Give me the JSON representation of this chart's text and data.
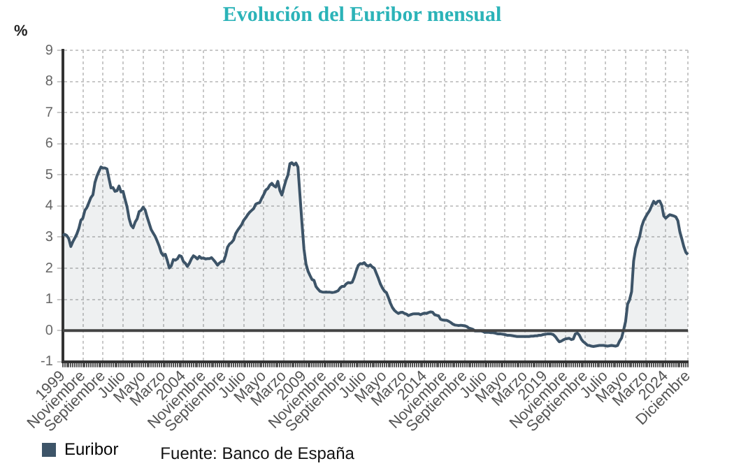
{
  "chart_data": {
    "type": "area",
    "title": "Evolución del Euribor mensual",
    "ylabel": "%",
    "categories": [
      "1999",
      null,
      null,
      null,
      null,
      null,
      null,
      null,
      null,
      null,
      "Noviembre",
      null,
      null,
      null,
      null,
      null,
      null,
      null,
      null,
      null,
      "Septiembre",
      null,
      null,
      null,
      null,
      null,
      null,
      null,
      null,
      null,
      "Julio",
      null,
      null,
      null,
      null,
      null,
      null,
      null,
      null,
      null,
      "Mayo",
      null,
      null,
      null,
      null,
      null,
      null,
      null,
      null,
      null,
      "Marzo",
      null,
      null,
      null,
      null,
      null,
      null,
      null,
      null,
      null,
      "2004",
      null,
      null,
      null,
      null,
      null,
      null,
      null,
      null,
      null,
      "Noviembre",
      null,
      null,
      null,
      null,
      null,
      null,
      null,
      null,
      null,
      "Septiembre",
      null,
      null,
      null,
      null,
      null,
      null,
      null,
      null,
      null,
      "Julio",
      null,
      null,
      null,
      null,
      null,
      null,
      null,
      null,
      null,
      "Mayo",
      null,
      null,
      null,
      null,
      null,
      null,
      null,
      null,
      null,
      "Marzo",
      null,
      null,
      null,
      null,
      null,
      null,
      null,
      null,
      null,
      "2009",
      null,
      null,
      null,
      null,
      null,
      null,
      null,
      null,
      null,
      "Noviembre",
      null,
      null,
      null,
      null,
      null,
      null,
      null,
      null,
      null,
      "Septiembre",
      null,
      null,
      null,
      null,
      null,
      null,
      null,
      null,
      null,
      "Julio",
      null,
      null,
      null,
      null,
      null,
      null,
      null,
      null,
      null,
      "Mayo",
      null,
      null,
      null,
      null,
      null,
      null,
      null,
      null,
      null,
      "Marzo",
      null,
      null,
      null,
      null,
      null,
      null,
      null,
      null,
      null,
      "2014",
      null,
      null,
      null,
      null,
      null,
      null,
      null,
      null,
      null,
      "Noviembre",
      null,
      null,
      null,
      null,
      null,
      null,
      null,
      null,
      null,
      "Septiembre",
      null,
      null,
      null,
      null,
      null,
      null,
      null,
      null,
      null,
      "Julio",
      null,
      null,
      null,
      null,
      null,
      null,
      null,
      null,
      null,
      "Mayo",
      null,
      null,
      null,
      null,
      null,
      null,
      null,
      null,
      null,
      "Marzo",
      null,
      null,
      null,
      null,
      null,
      null,
      null,
      null,
      null,
      "2019",
      null,
      null,
      null,
      null,
      null,
      null,
      null,
      null,
      null,
      "Noviembre",
      null,
      null,
      null,
      null,
      null,
      null,
      null,
      null,
      null,
      "Septiembre",
      null,
      null,
      null,
      null,
      null,
      null,
      null,
      null,
      null,
      "Julio",
      null,
      null,
      null,
      null,
      null,
      null,
      null,
      null,
      null,
      "Mayo",
      null,
      null,
      null,
      null,
      null,
      null,
      null,
      null,
      null,
      "Marzo",
      null,
      null,
      null,
      null,
      null,
      null,
      null,
      null,
      null,
      "2024",
      null,
      null,
      null,
      null,
      null,
      null,
      null,
      null,
      null,
      null,
      "Diciembre"
    ],
    "series": [
      {
        "name": "Euribor",
        "color": "#3d5468",
        "values": [
          3.05,
          3.09,
          3.05,
          2.95,
          2.7,
          2.85,
          2.97,
          3.1,
          3.28,
          3.54,
          3.61,
          3.86,
          3.95,
          4.11,
          4.27,
          4.36,
          4.75,
          4.96,
          5.11,
          5.25,
          5.22,
          5.22,
          5.19,
          4.88,
          4.58,
          4.59,
          4.47,
          4.49,
          4.64,
          4.45,
          4.47,
          4.21,
          3.97,
          3.6,
          3.38,
          3.3,
          3.48,
          3.59,
          3.82,
          3.86,
          3.96,
          3.87,
          3.64,
          3.44,
          3.24,
          3.13,
          3.02,
          2.87,
          2.71,
          2.5,
          2.41,
          2.45,
          2.25,
          2.01,
          2.08,
          2.28,
          2.26,
          2.3,
          2.41,
          2.38,
          2.22,
          2.16,
          2.06,
          2.16,
          2.3,
          2.4,
          2.36,
          2.3,
          2.38,
          2.32,
          2.33,
          2.3,
          2.31,
          2.31,
          2.34,
          2.27,
          2.19,
          2.1,
          2.17,
          2.22,
          2.22,
          2.41,
          2.68,
          2.78,
          2.83,
          2.91,
          3.11,
          3.22,
          3.31,
          3.4,
          3.54,
          3.62,
          3.72,
          3.8,
          3.86,
          3.92,
          4.06,
          4.09,
          4.11,
          4.25,
          4.37,
          4.51,
          4.56,
          4.67,
          4.73,
          4.65,
          4.61,
          4.79,
          4.5,
          4.35,
          4.59,
          4.82,
          4.99,
          5.36,
          5.39,
          5.32,
          5.38,
          5.25,
          4.35,
          3.45,
          2.62,
          2.14,
          1.91,
          1.77,
          1.64,
          1.61,
          1.41,
          1.33,
          1.26,
          1.24,
          1.23,
          1.24,
          1.23,
          1.23,
          1.22,
          1.23,
          1.25,
          1.28,
          1.37,
          1.42,
          1.42,
          1.5,
          1.54,
          1.53,
          1.55,
          1.71,
          1.92,
          2.09,
          2.15,
          2.14,
          2.18,
          2.1,
          2.07,
          2.11,
          2.04,
          2.0,
          1.84,
          1.68,
          1.5,
          1.37,
          1.27,
          1.22,
          1.06,
          0.88,
          0.74,
          0.65,
          0.59,
          0.55,
          0.58,
          0.59,
          0.55,
          0.53,
          0.48,
          0.51,
          0.53,
          0.54,
          0.54,
          0.54,
          0.51,
          0.54,
          0.56,
          0.55,
          0.58,
          0.6,
          0.59,
          0.51,
          0.49,
          0.47,
          0.36,
          0.34,
          0.33,
          0.33,
          0.3,
          0.26,
          0.21,
          0.18,
          0.17,
          0.16,
          0.17,
          0.16,
          0.15,
          0.13,
          0.08,
          0.06,
          0.04,
          -0.01,
          -0.01,
          -0.01,
          -0.01,
          -0.03,
          -0.06,
          -0.05,
          -0.06,
          -0.07,
          -0.07,
          -0.08,
          -0.1,
          -0.11,
          -0.11,
          -0.12,
          -0.13,
          -0.15,
          -0.15,
          -0.16,
          -0.17,
          -0.18,
          -0.19,
          -0.19,
          -0.19,
          -0.19,
          -0.19,
          -0.19,
          -0.19,
          -0.18,
          -0.18,
          -0.17,
          -0.17,
          -0.15,
          -0.15,
          -0.13,
          -0.12,
          -0.11,
          -0.11,
          -0.11,
          -0.13,
          -0.19,
          -0.28,
          -0.36,
          -0.34,
          -0.3,
          -0.27,
          -0.26,
          -0.25,
          -0.29,
          -0.27,
          -0.11,
          -0.08,
          -0.15,
          -0.28,
          -0.36,
          -0.41,
          -0.47,
          -0.48,
          -0.5,
          -0.51,
          -0.5,
          -0.49,
          -0.48,
          -0.48,
          -0.48,
          -0.49,
          -0.5,
          -0.49,
          -0.48,
          -0.49,
          -0.5,
          -0.48,
          -0.34,
          -0.24,
          0.01,
          0.29,
          0.85,
          0.99,
          1.25,
          2.23,
          2.63,
          2.83,
          3.02,
          3.34,
          3.53,
          3.65,
          3.76,
          3.86,
          4.01,
          4.15,
          4.07,
          4.15,
          4.16,
          4.02,
          3.68,
          3.61,
          3.67,
          3.72,
          3.7,
          3.68,
          3.65,
          3.53,
          3.17,
          2.94,
          2.69,
          2.51,
          2.44
        ]
      }
    ],
    "ylim": [
      -1,
      9
    ],
    "yticks": [
      -1,
      0,
      1,
      2,
      3,
      4,
      5,
      6,
      7,
      8,
      9
    ],
    "grid": true,
    "legend": "bottom",
    "marker": "none",
    "line_style": "solid",
    "ref_lines": [
      {
        "axis": "y",
        "value": 0,
        "color": "#444444",
        "line_style": "solid"
      }
    ],
    "annotations": [
      "Fuente: Banco de España"
    ]
  }
}
